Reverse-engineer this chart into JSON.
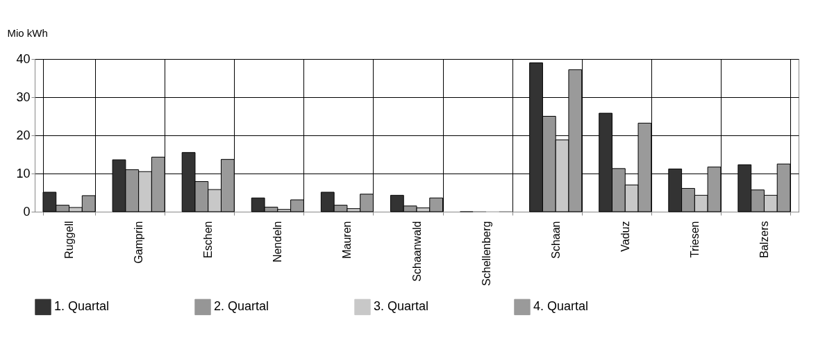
{
  "chart_data": {
    "type": "bar",
    "ylabel": "Mio kWh",
    "categories": [
      "Ruggell",
      "Gamprin",
      "Eschen",
      "Nendeln",
      "Mauren",
      "Schaanwald",
      "Schellenberg",
      "Schaan",
      "Vaduz",
      "Triesen",
      "Balzers"
    ],
    "series": [
      {
        "name": "1. Quartal",
        "color": "#333333",
        "values": [
          5.1,
          13.6,
          15.5,
          3.6,
          5.1,
          4.3,
          0,
          39.0,
          25.8,
          11.2,
          12.3
        ]
      },
      {
        "name": "2. Quartal",
        "color": "#969696",
        "values": [
          1.7,
          11.0,
          7.9,
          1.2,
          1.7,
          1.5,
          0,
          25.0,
          11.3,
          6.1,
          5.7
        ]
      },
      {
        "name": "3. Quartal",
        "color": "#c8c8c8",
        "values": [
          1.1,
          10.5,
          5.8,
          0.6,
          0.8,
          1.0,
          0,
          18.8,
          7.0,
          4.3,
          4.3
        ]
      },
      {
        "name": "4. Quartal",
        "color": "#9a9a9a",
        "values": [
          4.2,
          14.3,
          13.7,
          3.1,
          4.6,
          3.6,
          0,
          37.2,
          23.2,
          11.7,
          12.5
        ]
      }
    ],
    "ylim": [
      0,
      40
    ],
    "yticks": [
      0,
      10,
      20,
      30,
      40
    ],
    "grid": true,
    "legend": "bottom"
  }
}
